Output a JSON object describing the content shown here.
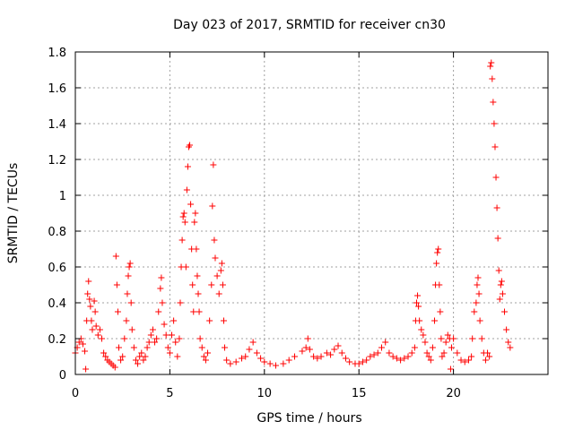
{
  "chart_data": {
    "type": "scatter",
    "title": "Day 023 of 2017, SRMTID for receiver cn30",
    "xlabel": "GPS time / hours",
    "ylabel": "SRMTID / TECUs",
    "xlim": [
      0,
      25
    ],
    "ylim": [
      0,
      1.8
    ],
    "xticks": [
      0,
      5,
      10,
      15,
      20
    ],
    "xtick_labels": [
      "0",
      "5",
      "10",
      "15",
      "20"
    ],
    "yticks": [
      0,
      0.2,
      0.4,
      0.6,
      0.8,
      1,
      1.2,
      1.4,
      1.6,
      1.8
    ],
    "ytick_labels": [
      "0",
      "0.2",
      "0.4",
      "0.6",
      "0.8",
      "1",
      "1.2",
      "1.4",
      "1.6",
      "1.8"
    ],
    "grid": true,
    "marker": "plus",
    "marker_color": "#ff0000",
    "series": [
      {
        "name": "SRMTID",
        "points": [
          [
            0.0,
            0.12
          ],
          [
            0.1,
            0.15
          ],
          [
            0.2,
            0.18
          ],
          [
            0.3,
            0.2
          ],
          [
            0.4,
            0.17
          ],
          [
            0.5,
            0.13
          ],
          [
            0.55,
            0.03
          ],
          [
            0.6,
            0.3
          ],
          [
            0.65,
            0.45
          ],
          [
            0.7,
            0.52
          ],
          [
            0.75,
            0.42
          ],
          [
            0.8,
            0.38
          ],
          [
            0.85,
            0.3
          ],
          [
            0.9,
            0.25
          ],
          [
            1.0,
            0.41
          ],
          [
            1.05,
            0.35
          ],
          [
            1.1,
            0.27
          ],
          [
            1.2,
            0.22
          ],
          [
            1.3,
            0.25
          ],
          [
            1.4,
            0.2
          ],
          [
            1.5,
            0.12
          ],
          [
            1.6,
            0.1
          ],
          [
            1.7,
            0.08
          ],
          [
            1.8,
            0.07
          ],
          [
            1.9,
            0.06
          ],
          [
            2.0,
            0.05
          ],
          [
            2.1,
            0.04
          ],
          [
            2.15,
            0.66
          ],
          [
            2.2,
            0.5
          ],
          [
            2.25,
            0.35
          ],
          [
            2.3,
            0.15
          ],
          [
            2.4,
            0.08
          ],
          [
            2.5,
            0.1
          ],
          [
            2.6,
            0.2
          ],
          [
            2.7,
            0.3
          ],
          [
            2.75,
            0.45
          ],
          [
            2.8,
            0.55
          ],
          [
            2.85,
            0.6
          ],
          [
            2.9,
            0.62
          ],
          [
            2.95,
            0.4
          ],
          [
            3.0,
            0.25
          ],
          [
            3.1,
            0.15
          ],
          [
            3.2,
            0.08
          ],
          [
            3.3,
            0.06
          ],
          [
            3.4,
            0.1
          ],
          [
            3.5,
            0.12
          ],
          [
            3.6,
            0.08
          ],
          [
            3.7,
            0.1
          ],
          [
            3.8,
            0.15
          ],
          [
            3.9,
            0.18
          ],
          [
            4.0,
            0.22
          ],
          [
            4.1,
            0.25
          ],
          [
            4.2,
            0.18
          ],
          [
            4.3,
            0.2
          ],
          [
            4.4,
            0.35
          ],
          [
            4.5,
            0.48
          ],
          [
            4.55,
            0.54
          ],
          [
            4.6,
            0.4
          ],
          [
            4.7,
            0.28
          ],
          [
            4.8,
            0.22
          ],
          [
            4.9,
            0.15
          ],
          [
            5.0,
            0.12
          ],
          [
            5.1,
            0.22
          ],
          [
            5.2,
            0.3
          ],
          [
            5.3,
            0.18
          ],
          [
            5.4,
            0.1
          ],
          [
            5.5,
            0.2
          ],
          [
            5.55,
            0.4
          ],
          [
            5.6,
            0.6
          ],
          [
            5.65,
            0.75
          ],
          [
            5.7,
            0.88
          ],
          [
            5.75,
            0.9
          ],
          [
            5.8,
            0.85
          ],
          [
            5.85,
            0.6
          ],
          [
            5.9,
            1.03
          ],
          [
            5.95,
            1.16
          ],
          [
            6.0,
            1.27
          ],
          [
            6.05,
            1.28
          ],
          [
            6.1,
            0.95
          ],
          [
            6.15,
            0.7
          ],
          [
            6.2,
            0.5
          ],
          [
            6.25,
            0.35
          ],
          [
            6.3,
            0.85
          ],
          [
            6.35,
            0.9
          ],
          [
            6.4,
            0.7
          ],
          [
            6.45,
            0.55
          ],
          [
            6.5,
            0.45
          ],
          [
            6.55,
            0.35
          ],
          [
            6.6,
            0.2
          ],
          [
            6.7,
            0.15
          ],
          [
            6.8,
            0.1
          ],
          [
            6.9,
            0.08
          ],
          [
            7.0,
            0.12
          ],
          [
            7.1,
            0.3
          ],
          [
            7.2,
            0.5
          ],
          [
            7.25,
            0.94
          ],
          [
            7.3,
            1.17
          ],
          [
            7.35,
            0.75
          ],
          [
            7.4,
            0.65
          ],
          [
            7.5,
            0.55
          ],
          [
            7.6,
            0.45
          ],
          [
            7.7,
            0.58
          ],
          [
            7.75,
            0.62
          ],
          [
            7.8,
            0.5
          ],
          [
            7.85,
            0.3
          ],
          [
            7.9,
            0.15
          ],
          [
            8.0,
            0.08
          ],
          [
            8.2,
            0.06
          ],
          [
            8.5,
            0.07
          ],
          [
            8.8,
            0.09
          ],
          [
            9.0,
            0.1
          ],
          [
            9.2,
            0.14
          ],
          [
            9.4,
            0.18
          ],
          [
            9.6,
            0.12
          ],
          [
            9.8,
            0.09
          ],
          [
            10.0,
            0.07
          ],
          [
            10.3,
            0.06
          ],
          [
            10.6,
            0.05
          ],
          [
            11.0,
            0.06
          ],
          [
            11.3,
            0.08
          ],
          [
            11.6,
            0.1
          ],
          [
            12.0,
            0.13
          ],
          [
            12.2,
            0.15
          ],
          [
            12.3,
            0.2
          ],
          [
            12.4,
            0.14
          ],
          [
            12.6,
            0.1
          ],
          [
            12.8,
            0.09
          ],
          [
            13.0,
            0.1
          ],
          [
            13.3,
            0.12
          ],
          [
            13.5,
            0.11
          ],
          [
            13.7,
            0.14
          ],
          [
            13.9,
            0.16
          ],
          [
            14.1,
            0.12
          ],
          [
            14.3,
            0.09
          ],
          [
            14.5,
            0.07
          ],
          [
            14.8,
            0.06
          ],
          [
            15.0,
            0.06
          ],
          [
            15.2,
            0.07
          ],
          [
            15.4,
            0.08
          ],
          [
            15.6,
            0.1
          ],
          [
            15.8,
            0.11
          ],
          [
            16.0,
            0.12
          ],
          [
            16.2,
            0.15
          ],
          [
            16.4,
            0.18
          ],
          [
            16.6,
            0.12
          ],
          [
            16.8,
            0.1
          ],
          [
            17.0,
            0.09
          ],
          [
            17.2,
            0.08
          ],
          [
            17.4,
            0.09
          ],
          [
            17.6,
            0.1
          ],
          [
            17.8,
            0.12
          ],
          [
            17.95,
            0.15
          ],
          [
            18.0,
            0.3
          ],
          [
            18.05,
            0.4
          ],
          [
            18.1,
            0.44
          ],
          [
            18.15,
            0.38
          ],
          [
            18.2,
            0.3
          ],
          [
            18.3,
            0.25
          ],
          [
            18.4,
            0.22
          ],
          [
            18.5,
            0.18
          ],
          [
            18.6,
            0.12
          ],
          [
            18.7,
            0.1
          ],
          [
            18.8,
            0.08
          ],
          [
            18.9,
            0.15
          ],
          [
            19.0,
            0.3
          ],
          [
            19.05,
            0.5
          ],
          [
            19.1,
            0.62
          ],
          [
            19.15,
            0.68
          ],
          [
            19.2,
            0.7
          ],
          [
            19.25,
            0.5
          ],
          [
            19.3,
            0.35
          ],
          [
            19.35,
            0.2
          ],
          [
            19.4,
            0.1
          ],
          [
            19.5,
            0.12
          ],
          [
            19.6,
            0.18
          ],
          [
            19.7,
            0.22
          ],
          [
            19.8,
            0.2
          ],
          [
            19.85,
            0.03
          ],
          [
            19.9,
            0.15
          ],
          [
            20.0,
            0.2
          ],
          [
            20.2,
            0.12
          ],
          [
            20.4,
            0.08
          ],
          [
            20.6,
            0.07
          ],
          [
            20.8,
            0.08
          ],
          [
            20.95,
            0.1
          ],
          [
            21.0,
            0.2
          ],
          [
            21.1,
            0.35
          ],
          [
            21.2,
            0.4
          ],
          [
            21.25,
            0.5
          ],
          [
            21.3,
            0.54
          ],
          [
            21.35,
            0.45
          ],
          [
            21.4,
            0.3
          ],
          [
            21.5,
            0.2
          ],
          [
            21.6,
            0.12
          ],
          [
            21.7,
            0.08
          ],
          [
            21.8,
            0.12
          ],
          [
            21.9,
            0.1
          ],
          [
            21.95,
            1.72
          ],
          [
            22.0,
            1.74
          ],
          [
            22.05,
            1.65
          ],
          [
            22.1,
            1.52
          ],
          [
            22.15,
            1.4
          ],
          [
            22.2,
            1.27
          ],
          [
            22.25,
            1.1
          ],
          [
            22.3,
            0.93
          ],
          [
            22.35,
            0.76
          ],
          [
            22.4,
            0.58
          ],
          [
            22.45,
            0.42
          ],
          [
            22.5,
            0.5
          ],
          [
            22.55,
            0.52
          ],
          [
            22.6,
            0.45
          ],
          [
            22.7,
            0.35
          ],
          [
            22.8,
            0.25
          ],
          [
            22.9,
            0.18
          ],
          [
            23.0,
            0.15
          ]
        ]
      }
    ]
  }
}
